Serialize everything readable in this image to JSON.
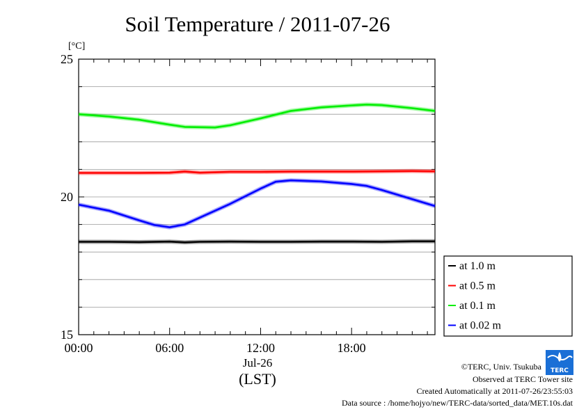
{
  "chart_data": {
    "type": "line",
    "title": "Soil Temperature / 2011-07-26",
    "yunit": "[°C]",
    "xlabel": "(LST)",
    "date_label": "Jul-26",
    "ylim": [
      15,
      25
    ],
    "yticks": [
      15,
      20,
      25
    ],
    "xlim": [
      0,
      23.5
    ],
    "xticks": [
      {
        "x": 0,
        "label": "00:00"
      },
      {
        "x": 6,
        "label": "06:00"
      },
      {
        "x": 12,
        "label": "12:00"
      },
      {
        "x": 18,
        "label": "18:00"
      }
    ],
    "grid": true,
    "legend_position": "right",
    "series": [
      {
        "name": "at 1.0 m",
        "color": "#000000",
        "x": [
          0,
          2,
          4,
          6,
          7,
          8,
          10,
          12,
          14,
          16,
          18,
          20,
          22,
          23.5
        ],
        "y": [
          18.37,
          18.37,
          18.36,
          18.38,
          18.35,
          18.37,
          18.38,
          18.37,
          18.37,
          18.38,
          18.38,
          18.37,
          18.39,
          18.39
        ]
      },
      {
        "name": "at 0.5 m",
        "color": "#ff0000",
        "x": [
          0,
          2,
          4,
          6,
          7,
          8,
          10,
          12,
          14,
          16,
          18,
          20,
          22,
          23.5
        ],
        "y": [
          20.87,
          20.87,
          20.87,
          20.88,
          20.92,
          20.88,
          20.91,
          20.91,
          20.92,
          20.92,
          20.92,
          20.93,
          20.94,
          20.93
        ]
      },
      {
        "name": "at 0.1 m",
        "color": "#00ee00",
        "x": [
          0,
          2,
          4,
          6,
          7,
          8,
          9,
          10,
          12,
          14,
          16,
          18,
          19,
          20,
          22,
          23.5
        ],
        "y": [
          23.0,
          22.92,
          22.8,
          22.62,
          22.54,
          22.53,
          22.52,
          22.6,
          22.85,
          23.12,
          23.25,
          23.32,
          23.35,
          23.33,
          23.22,
          23.12
        ]
      },
      {
        "name": "at 0.02 m",
        "color": "#0000ff",
        "x": [
          0,
          2,
          4,
          5,
          6,
          7,
          8,
          10,
          12,
          13,
          14,
          16,
          18,
          19,
          20,
          22,
          23.5
        ],
        "y": [
          19.72,
          19.5,
          19.15,
          18.98,
          18.9,
          19.0,
          19.25,
          19.75,
          20.3,
          20.55,
          20.6,
          20.56,
          20.47,
          20.4,
          20.25,
          19.92,
          19.67
        ]
      }
    ]
  },
  "credits": {
    "copyright": "©TERC, Univ. Tsukuba",
    "site": "Observed at TERC Tower site",
    "created": "Created Automatically at 2011-07-26/23:55:03",
    "source": "Data source : /home/hojyo/new/TERC-data/sorted_data/MET.10s.dat",
    "logo_text": "TERC"
  }
}
